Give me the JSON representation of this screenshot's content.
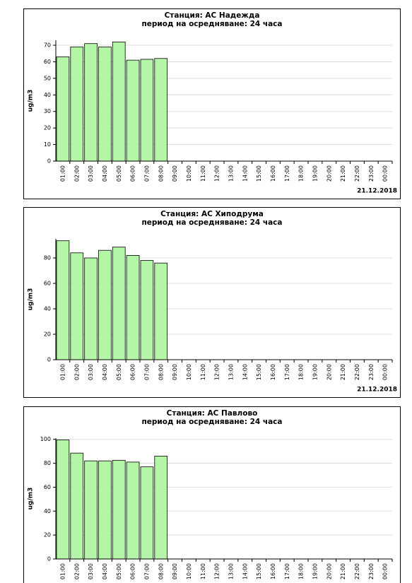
{
  "charts": [
    {
      "chart_data": {
        "type": "bar",
        "title": "Станция: АС Надежда",
        "subtitle": "период на осредняване: 24 часа",
        "y_label": "ug/m3",
        "date": "21.12.2018",
        "categories": [
          "01:00",
          "02:00",
          "03:00",
          "04:00",
          "05:00",
          "06:00",
          "07:00",
          "08:00",
          "09:00",
          "10:00",
          "11:00",
          "12:00",
          "13:00",
          "14:00",
          "15:00",
          "16:00",
          "17:00",
          "18:00",
          "19:00",
          "20:00",
          "21:00",
          "22:00",
          "23:00",
          "00:00"
        ],
        "values": [
          63,
          69,
          71,
          69,
          72,
          61,
          61.5,
          62,
          null,
          null,
          null,
          null,
          null,
          null,
          null,
          null,
          null,
          null,
          null,
          null,
          null,
          null,
          null,
          null
        ],
        "color": "#b5f5a8",
        "ylim": [
          0,
          73
        ],
        "yticks": [
          0,
          10,
          20,
          30,
          40,
          50,
          60,
          70
        ],
        "grid": true
      }
    },
    {
      "chart_data": {
        "type": "bar",
        "title": "Станция: АС Хиподрума",
        "subtitle": "период на осредняване: 24 часа",
        "y_label": "ug/m3",
        "date": "21.12.2018",
        "categories": [
          "01:00",
          "02:00",
          "03:00",
          "04:00",
          "05:00",
          "06:00",
          "07:00",
          "08:00",
          "09:00",
          "10:00",
          "11:00",
          "12:00",
          "13:00",
          "14:00",
          "15:00",
          "16:00",
          "17:00",
          "18:00",
          "19:00",
          "20:00",
          "21:00",
          "22:00",
          "23:00",
          "00:00"
        ],
        "values": [
          93.5,
          84,
          80,
          86,
          88.5,
          82,
          78,
          76,
          null,
          null,
          null,
          null,
          null,
          null,
          null,
          null,
          null,
          null,
          null,
          null,
          null,
          null,
          null,
          null
        ],
        "color": "#b5f5a8",
        "ylim": [
          0,
          95
        ],
        "yticks": [
          0,
          20,
          40,
          60,
          80
        ],
        "grid": true
      }
    },
    {
      "chart_data": {
        "type": "bar",
        "title": "Станция: АС Павлово",
        "subtitle": "период на осредняване: 24 часа",
        "y_label": "ug/m3",
        "categories": [
          "01:00",
          "02:00",
          "03:00",
          "04:00",
          "05:00",
          "06:00",
          "07:00",
          "08:00",
          "09:00",
          "10:00",
          "11:00",
          "12:00",
          "13:00",
          "14:00",
          "15:00",
          "16:00",
          "17:00",
          "18:00",
          "19:00",
          "20:00",
          "21:00",
          "22:00",
          "23:00",
          "00:00"
        ],
        "values": [
          99.5,
          88.5,
          82,
          82,
          82.5,
          81,
          77,
          86,
          null,
          null,
          null,
          null,
          null,
          null,
          null,
          null,
          null,
          null,
          null,
          null,
          null,
          null,
          null,
          null
        ],
        "color": "#b5f5a8",
        "ylim": [
          0,
          101
        ],
        "yticks": [
          0,
          20,
          40,
          60,
          80,
          100
        ],
        "grid": true
      }
    }
  ]
}
